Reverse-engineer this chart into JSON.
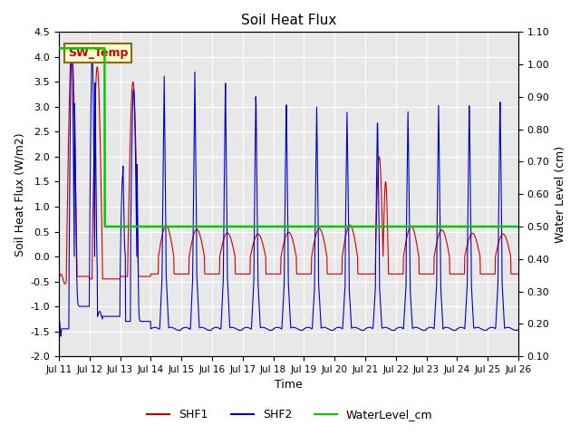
{
  "title": "Soil Heat Flux",
  "xlabel": "Time",
  "ylabel_left": "Soil Heat Flux (W/m2)",
  "ylabel_right": "Water Level (cm)",
  "ylim_left": [
    -2.0,
    4.5
  ],
  "ylim_right": [
    0.1,
    1.1
  ],
  "xtick_labels": [
    "Jul 11",
    "Jul 12",
    "Jul 13",
    "Jul 14",
    "Jul 15",
    "Jul 16",
    "Jul 17",
    "Jul 18",
    "Jul 19",
    "Jul 20",
    "Jul 21",
    "Jul 22",
    "Jul 23",
    "Jul 24",
    "Jul 25",
    "Jul 26"
  ],
  "yticks_left": [
    -2.0,
    -1.5,
    -1.0,
    -0.5,
    0.0,
    0.5,
    1.0,
    1.5,
    2.0,
    2.5,
    3.0,
    3.5,
    4.0,
    4.5
  ],
  "yticks_right": [
    0.1,
    0.2,
    0.3,
    0.4,
    0.5,
    0.6,
    0.7,
    0.8,
    0.9,
    1.0,
    1.1
  ],
  "color_shf1": "#cc0000",
  "color_shf2": "#0000cc",
  "color_wl": "#00cc00",
  "background_plot": "#e8e8e8",
  "background_fig": "#ffffff",
  "grid_color": "#ffffff",
  "sw_temp_label": "SW_Temp",
  "annotation_box_facecolor": "#ffffcc",
  "annotation_box_edgecolor": "#8B6914",
  "n_days": 15,
  "n_per_day": 96,
  "water_level_high": 1.05,
  "water_level_low": 0.5,
  "water_step_day": 1.5
}
